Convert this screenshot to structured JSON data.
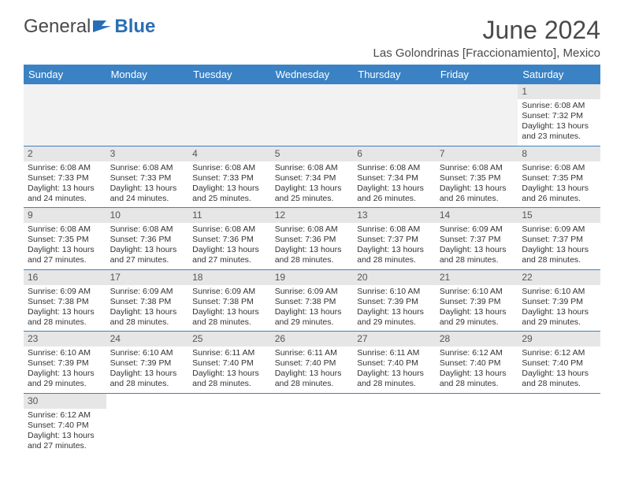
{
  "logo": {
    "text1": "General",
    "text2": "Blue"
  },
  "title": "June 2024",
  "location": "Las Golondrinas [Fraccionamiento], Mexico",
  "colors": {
    "header_bg": "#3b82c4",
    "header_fg": "#ffffff",
    "daynum_bg": "#e6e6e6",
    "empty_bg": "#f2f2f2",
    "border": "#3b82c4",
    "text": "#333333",
    "title": "#4a4a4a"
  },
  "weekdays": [
    "Sunday",
    "Monday",
    "Tuesday",
    "Wednesday",
    "Thursday",
    "Friday",
    "Saturday"
  ],
  "weeks": [
    [
      null,
      null,
      null,
      null,
      null,
      null,
      {
        "n": "1",
        "sr": "Sunrise: 6:08 AM",
        "ss": "Sunset: 7:32 PM",
        "d1": "Daylight: 13 hours",
        "d2": "and 23 minutes."
      }
    ],
    [
      {
        "n": "2",
        "sr": "Sunrise: 6:08 AM",
        "ss": "Sunset: 7:33 PM",
        "d1": "Daylight: 13 hours",
        "d2": "and 24 minutes."
      },
      {
        "n": "3",
        "sr": "Sunrise: 6:08 AM",
        "ss": "Sunset: 7:33 PM",
        "d1": "Daylight: 13 hours",
        "d2": "and 24 minutes."
      },
      {
        "n": "4",
        "sr": "Sunrise: 6:08 AM",
        "ss": "Sunset: 7:33 PM",
        "d1": "Daylight: 13 hours",
        "d2": "and 25 minutes."
      },
      {
        "n": "5",
        "sr": "Sunrise: 6:08 AM",
        "ss": "Sunset: 7:34 PM",
        "d1": "Daylight: 13 hours",
        "d2": "and 25 minutes."
      },
      {
        "n": "6",
        "sr": "Sunrise: 6:08 AM",
        "ss": "Sunset: 7:34 PM",
        "d1": "Daylight: 13 hours",
        "d2": "and 26 minutes."
      },
      {
        "n": "7",
        "sr": "Sunrise: 6:08 AM",
        "ss": "Sunset: 7:35 PM",
        "d1": "Daylight: 13 hours",
        "d2": "and 26 minutes."
      },
      {
        "n": "8",
        "sr": "Sunrise: 6:08 AM",
        "ss": "Sunset: 7:35 PM",
        "d1": "Daylight: 13 hours",
        "d2": "and 26 minutes."
      }
    ],
    [
      {
        "n": "9",
        "sr": "Sunrise: 6:08 AM",
        "ss": "Sunset: 7:35 PM",
        "d1": "Daylight: 13 hours",
        "d2": "and 27 minutes."
      },
      {
        "n": "10",
        "sr": "Sunrise: 6:08 AM",
        "ss": "Sunset: 7:36 PM",
        "d1": "Daylight: 13 hours",
        "d2": "and 27 minutes."
      },
      {
        "n": "11",
        "sr": "Sunrise: 6:08 AM",
        "ss": "Sunset: 7:36 PM",
        "d1": "Daylight: 13 hours",
        "d2": "and 27 minutes."
      },
      {
        "n": "12",
        "sr": "Sunrise: 6:08 AM",
        "ss": "Sunset: 7:36 PM",
        "d1": "Daylight: 13 hours",
        "d2": "and 28 minutes."
      },
      {
        "n": "13",
        "sr": "Sunrise: 6:08 AM",
        "ss": "Sunset: 7:37 PM",
        "d1": "Daylight: 13 hours",
        "d2": "and 28 minutes."
      },
      {
        "n": "14",
        "sr": "Sunrise: 6:09 AM",
        "ss": "Sunset: 7:37 PM",
        "d1": "Daylight: 13 hours",
        "d2": "and 28 minutes."
      },
      {
        "n": "15",
        "sr": "Sunrise: 6:09 AM",
        "ss": "Sunset: 7:37 PM",
        "d1": "Daylight: 13 hours",
        "d2": "and 28 minutes."
      }
    ],
    [
      {
        "n": "16",
        "sr": "Sunrise: 6:09 AM",
        "ss": "Sunset: 7:38 PM",
        "d1": "Daylight: 13 hours",
        "d2": "and 28 minutes."
      },
      {
        "n": "17",
        "sr": "Sunrise: 6:09 AM",
        "ss": "Sunset: 7:38 PM",
        "d1": "Daylight: 13 hours",
        "d2": "and 28 minutes."
      },
      {
        "n": "18",
        "sr": "Sunrise: 6:09 AM",
        "ss": "Sunset: 7:38 PM",
        "d1": "Daylight: 13 hours",
        "d2": "and 28 minutes."
      },
      {
        "n": "19",
        "sr": "Sunrise: 6:09 AM",
        "ss": "Sunset: 7:38 PM",
        "d1": "Daylight: 13 hours",
        "d2": "and 29 minutes."
      },
      {
        "n": "20",
        "sr": "Sunrise: 6:10 AM",
        "ss": "Sunset: 7:39 PM",
        "d1": "Daylight: 13 hours",
        "d2": "and 29 minutes."
      },
      {
        "n": "21",
        "sr": "Sunrise: 6:10 AM",
        "ss": "Sunset: 7:39 PM",
        "d1": "Daylight: 13 hours",
        "d2": "and 29 minutes."
      },
      {
        "n": "22",
        "sr": "Sunrise: 6:10 AM",
        "ss": "Sunset: 7:39 PM",
        "d1": "Daylight: 13 hours",
        "d2": "and 29 minutes."
      }
    ],
    [
      {
        "n": "23",
        "sr": "Sunrise: 6:10 AM",
        "ss": "Sunset: 7:39 PM",
        "d1": "Daylight: 13 hours",
        "d2": "and 29 minutes."
      },
      {
        "n": "24",
        "sr": "Sunrise: 6:10 AM",
        "ss": "Sunset: 7:39 PM",
        "d1": "Daylight: 13 hours",
        "d2": "and 28 minutes."
      },
      {
        "n": "25",
        "sr": "Sunrise: 6:11 AM",
        "ss": "Sunset: 7:40 PM",
        "d1": "Daylight: 13 hours",
        "d2": "and 28 minutes."
      },
      {
        "n": "26",
        "sr": "Sunrise: 6:11 AM",
        "ss": "Sunset: 7:40 PM",
        "d1": "Daylight: 13 hours",
        "d2": "and 28 minutes."
      },
      {
        "n": "27",
        "sr": "Sunrise: 6:11 AM",
        "ss": "Sunset: 7:40 PM",
        "d1": "Daylight: 13 hours",
        "d2": "and 28 minutes."
      },
      {
        "n": "28",
        "sr": "Sunrise: 6:12 AM",
        "ss": "Sunset: 7:40 PM",
        "d1": "Daylight: 13 hours",
        "d2": "and 28 minutes."
      },
      {
        "n": "29",
        "sr": "Sunrise: 6:12 AM",
        "ss": "Sunset: 7:40 PM",
        "d1": "Daylight: 13 hours",
        "d2": "and 28 minutes."
      }
    ],
    [
      {
        "n": "30",
        "sr": "Sunrise: 6:12 AM",
        "ss": "Sunset: 7:40 PM",
        "d1": "Daylight: 13 hours",
        "d2": "and 27 minutes."
      },
      null,
      null,
      null,
      null,
      null,
      null
    ]
  ]
}
